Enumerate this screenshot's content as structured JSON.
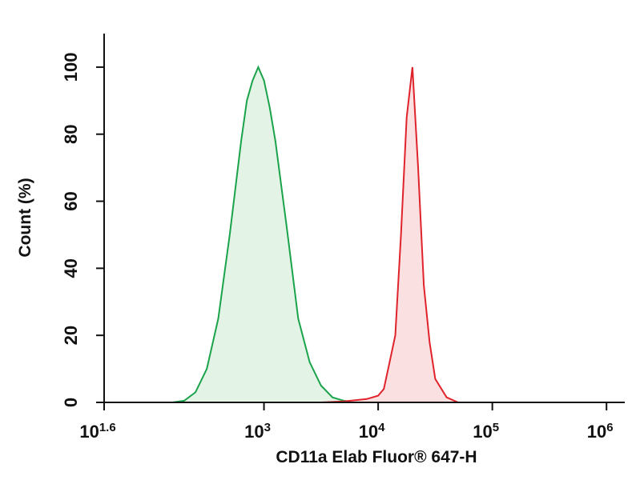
{
  "chart_data": {
    "type": "histogram-overlay",
    "x_label": "CD11a Elab Fluor® 647-H",
    "y_label": "Count (%)",
    "xscale": "log",
    "xlim": [
      39.81,
      1445440
    ],
    "xticks": [
      {
        "value": 39.81,
        "label": "10",
        "exponent": "1.6"
      },
      {
        "value": 1000,
        "label": "10",
        "exponent": "3"
      },
      {
        "value": 10000,
        "label": "10",
        "exponent": "4"
      },
      {
        "value": 100000,
        "label": "10",
        "exponent": "5"
      },
      {
        "value": 1000000,
        "label": "10",
        "exponent": "6"
      }
    ],
    "ylim": [
      0,
      110
    ],
    "yticks": [
      0,
      20,
      40,
      60,
      80,
      100
    ],
    "series": [
      {
        "color": "#1aa34a",
        "fill": "#e3f4e6",
        "x": [
          158,
          200,
          251,
          316,
          398,
          501,
          631,
          708,
          794,
          891,
          1000,
          1122,
          1259,
          1585,
          1995,
          2512,
          3162,
          3981,
          5012,
          6310
        ],
        "values": [
          0,
          0.5,
          3,
          10,
          25,
          50,
          78,
          90,
          96,
          100,
          96,
          88,
          78,
          52,
          25,
          12,
          5,
          1.5,
          0.5,
          0
        ]
      },
      {
        "color": "#e0232b",
        "fill": "#fbe0e2",
        "x": [
          3162,
          5012,
          7943,
          10000,
          11220,
          12589,
          14125,
          15849,
          17783,
          19953,
          22387,
          25119,
          28184,
          31623,
          39811,
          50119
        ],
        "values": [
          0,
          0.3,
          1,
          2,
          4,
          12,
          20,
          50,
          85,
          100,
          70,
          35,
          18,
          7,
          1.5,
          0
        ]
      }
    ]
  }
}
